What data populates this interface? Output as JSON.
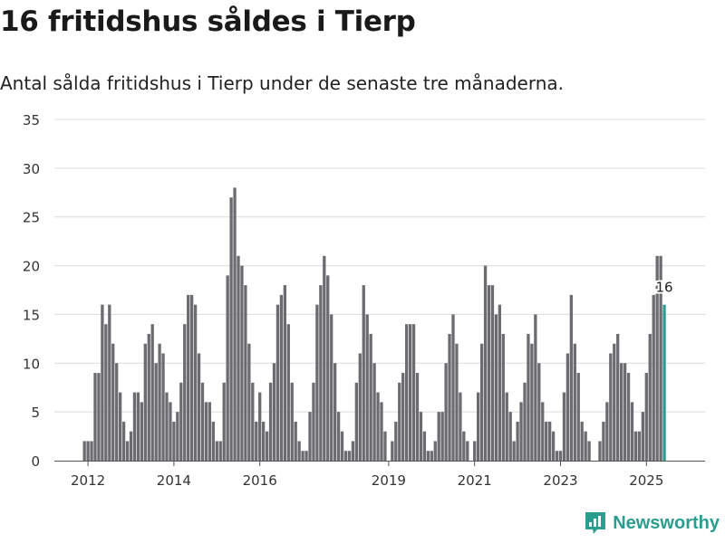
{
  "header": {
    "title": "16 fritidshus såldes i Tierp",
    "subtitle": "Antal sålda fritidshus i Tierp under de senaste tre månaderna."
  },
  "brand": {
    "name": "Newsworthy",
    "color": "#2a9d8f"
  },
  "chart_data": {
    "type": "bar",
    "title": "16 fritidshus såldes i Tierp",
    "subtitle": "Antal sålda fritidshus i Tierp under de senaste tre månaderna.",
    "xlabel": "",
    "ylabel": "",
    "ylim": [
      0,
      35
    ],
    "yticks": [
      0,
      5,
      10,
      15,
      20,
      25,
      30,
      35
    ],
    "grid": true,
    "xticks": [
      {
        "label": "2012",
        "index": 1
      },
      {
        "label": "2014",
        "index": 25
      },
      {
        "label": "2016",
        "index": 49
      },
      {
        "label": "2019",
        "index": 85
      },
      {
        "label": "2021",
        "index": 109
      },
      {
        "label": "2023",
        "index": 133
      },
      {
        "label": "2025",
        "index": 157
      }
    ],
    "bar_color": "#6b6b70",
    "highlight_color": "#2a9d8f",
    "highlight_label": "16",
    "values": [
      2,
      2,
      2,
      9,
      9,
      16,
      14,
      16,
      12,
      10,
      7,
      4,
      2,
      3,
      7,
      7,
      6,
      12,
      13,
      14,
      10,
      12,
      11,
      7,
      6,
      4,
      5,
      8,
      14,
      17,
      17,
      16,
      11,
      8,
      6,
      6,
      4,
      2,
      2,
      8,
      19,
      27,
      28,
      21,
      20,
      18,
      12,
      8,
      4,
      7,
      4,
      3,
      8,
      10,
      16,
      17,
      18,
      14,
      8,
      4,
      2,
      1,
      1,
      5,
      8,
      16,
      18,
      21,
      19,
      15,
      10,
      5,
      3,
      1,
      1,
      2,
      8,
      11,
      18,
      15,
      13,
      10,
      7,
      6,
      3,
      0,
      2,
      4,
      8,
      9,
      14,
      14,
      14,
      9,
      5,
      3,
      1,
      1,
      2,
      5,
      5,
      10,
      13,
      15,
      12,
      7,
      3,
      2,
      0,
      2,
      7,
      12,
      20,
      18,
      18,
      15,
      16,
      13,
      7,
      5,
      2,
      4,
      6,
      8,
      13,
      12,
      15,
      10,
      6,
      4,
      4,
      3,
      1,
      1,
      7,
      11,
      17,
      12,
      9,
      4,
      3,
      2,
      0,
      0,
      2,
      4,
      6,
      11,
      12,
      13,
      10,
      10,
      9,
      6,
      3,
      3,
      5,
      9,
      13,
      17,
      21,
      21,
      16
    ]
  }
}
